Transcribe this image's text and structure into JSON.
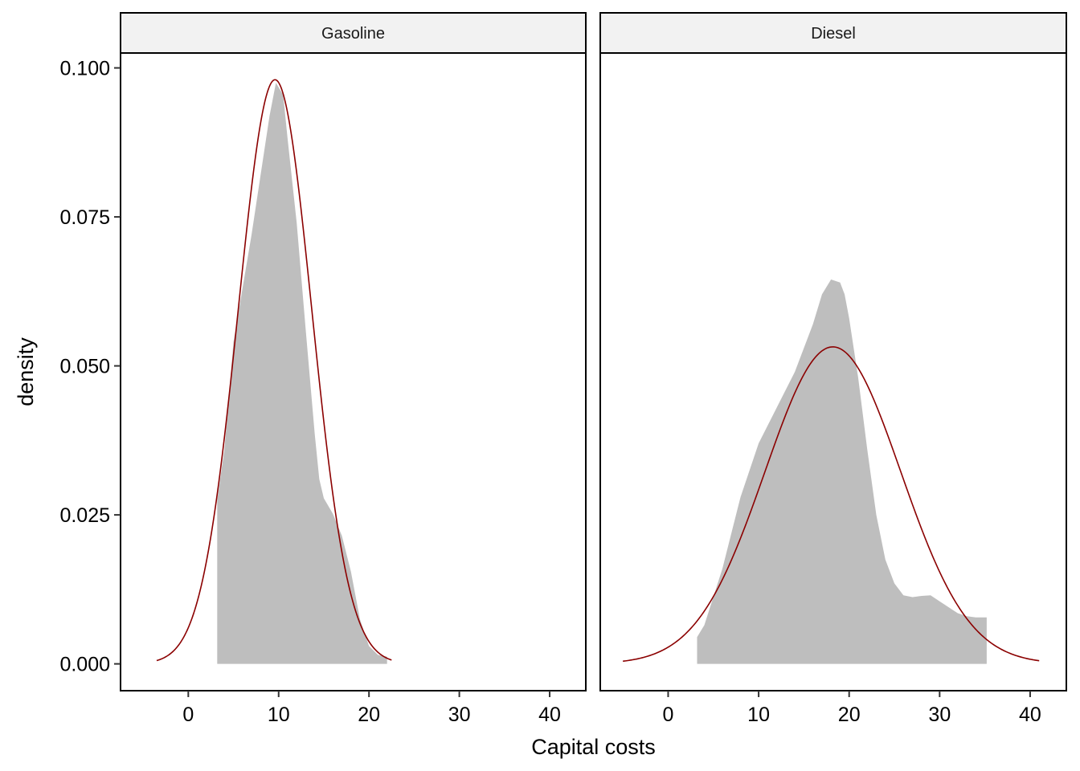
{
  "chart_data": {
    "type": "area",
    "xlabel": "Capital costs",
    "ylabel": "density",
    "xlim": [
      -7.5,
      44
    ],
    "ylim": [
      -0.0045,
      0.1025
    ],
    "x_ticks": [
      0,
      10,
      20,
      30,
      40
    ],
    "x_tick_labels": [
      "0",
      "10",
      "20",
      "30",
      "40"
    ],
    "y_ticks": [
      0,
      0.025,
      0.05,
      0.075,
      0.1
    ],
    "y_tick_labels": [
      "0.000",
      "0.025",
      "0.050",
      "0.075",
      "0.100"
    ],
    "grid": false,
    "legend": "none",
    "colors": {
      "density_fill": "#bebebe",
      "normal_curve": "#8b0000",
      "strip_fill": "#f2f2f2",
      "frame": "#000000"
    },
    "panels": [
      {
        "strip_label": "Gasoline",
        "empirical_density": {
          "x": [
            3.2,
            4,
            5,
            6,
            7,
            8,
            9,
            9.7,
            10.5,
            11,
            12,
            13,
            14,
            14.5,
            15,
            16,
            17,
            18,
            19,
            20,
            21,
            22
          ],
          "y": [
            0.0275,
            0.036,
            0.054,
            0.063,
            0.072,
            0.082,
            0.092,
            0.0975,
            0.0955,
            0.088,
            0.074,
            0.056,
            0.0385,
            0.031,
            0.0278,
            0.0252,
            0.0215,
            0.0155,
            0.0075,
            0.003,
            0.0015,
            0.0012
          ]
        },
        "normal_fit": {
          "mean": 9.6,
          "sd": 4.07,
          "x_range": [
            -3.5,
            22.5
          ]
        }
      },
      {
        "strip_label": "Diesel",
        "empirical_density": {
          "x": [
            3.2,
            4,
            6,
            8,
            10,
            12,
            14,
            16,
            17,
            18,
            19,
            19.5,
            20,
            21,
            22,
            23,
            24,
            25,
            26,
            27,
            28,
            29,
            30,
            31,
            32,
            33,
            34,
            35.2
          ],
          "y": [
            0.0045,
            0.0065,
            0.016,
            0.028,
            0.037,
            0.043,
            0.049,
            0.057,
            0.062,
            0.0645,
            0.064,
            0.062,
            0.058,
            0.048,
            0.036,
            0.025,
            0.0175,
            0.0135,
            0.0115,
            0.0112,
            0.0114,
            0.0115,
            0.0105,
            0.0095,
            0.0085,
            0.008,
            0.0078,
            0.0078
          ]
        },
        "normal_fit": {
          "mean": 18.2,
          "sd": 7.5,
          "x_range": [
            -5,
            41
          ]
        }
      }
    ]
  }
}
